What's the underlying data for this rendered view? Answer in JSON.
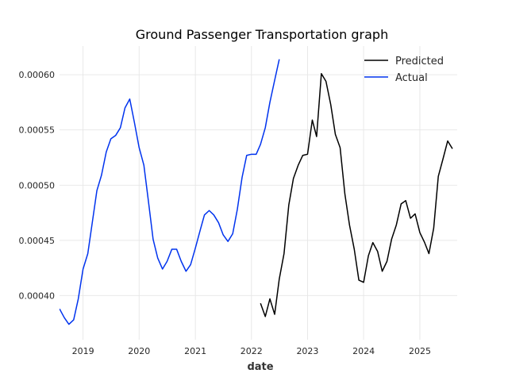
{
  "chart_data": {
    "type": "line",
    "title": "Ground Passenger Transportation graph",
    "xlabel": "date",
    "ylabel": "",
    "x_ticks": [
      "2019",
      "2020",
      "2021",
      "2022",
      "2023",
      "2024",
      "2025"
    ],
    "y_ticks": [
      "0.00040",
      "0.00045",
      "0.00050",
      "0.00055",
      "0.00060"
    ],
    "xlim": [
      "2018-08-01",
      "2025-09-01"
    ],
    "ylim": [
      0.00036,
      0.000626
    ],
    "grid": true,
    "legend_position": "top-right",
    "series": [
      {
        "name": "Predicted",
        "color": "#000000",
        "x": [
          "2022-03-01",
          "2022-04-01",
          "2022-05-01",
          "2022-06-01",
          "2022-07-01",
          "2022-08-01",
          "2022-09-01",
          "2022-10-01",
          "2022-11-01",
          "2022-12-01",
          "2023-01-01",
          "2023-02-01",
          "2023-03-01",
          "2023-04-01",
          "2023-05-01",
          "2023-06-01",
          "2023-07-01",
          "2023-08-01",
          "2023-09-01",
          "2023-10-01",
          "2023-11-01",
          "2023-12-01",
          "2024-01-01",
          "2024-02-01",
          "2024-03-01",
          "2024-04-01",
          "2024-05-01",
          "2024-06-01",
          "2024-07-01",
          "2024-08-01",
          "2024-09-01",
          "2024-10-01",
          "2024-11-01",
          "2024-12-01",
          "2025-01-01",
          "2025-02-01",
          "2025-03-01",
          "2025-04-01",
          "2025-05-01",
          "2025-06-01",
          "2025-07-01",
          "2025-08-01"
        ],
        "values": [
          0.000393,
          0.000381,
          0.000397,
          0.000383,
          0.000415,
          0.000438,
          0.000482,
          0.000506,
          0.000518,
          0.000527,
          0.000528,
          0.000559,
          0.000544,
          0.000601,
          0.000594,
          0.000573,
          0.000546,
          0.000534,
          0.000492,
          0.000464,
          0.000442,
          0.000414,
          0.000412,
          0.000436,
          0.000448,
          0.00044,
          0.000422,
          0.000431,
          0.000451,
          0.000464,
          0.000483,
          0.000486,
          0.00047,
          0.000474,
          0.000457,
          0.000448,
          0.000438,
          0.000461,
          0.000508,
          0.000524,
          0.00054,
          0.000533
        ]
      },
      {
        "name": "Actual",
        "color": "#0033ee",
        "x": [
          "2018-08-01",
          "2018-09-01",
          "2018-10-01",
          "2018-11-01",
          "2018-12-01",
          "2019-01-01",
          "2019-02-01",
          "2019-03-01",
          "2019-04-01",
          "2019-05-01",
          "2019-06-01",
          "2019-07-01",
          "2019-08-01",
          "2019-09-01",
          "2019-10-01",
          "2019-11-01",
          "2019-12-01",
          "2020-01-01",
          "2020-02-01",
          "2020-03-01",
          "2020-04-01",
          "2020-05-01",
          "2020-06-01",
          "2020-07-01",
          "2020-08-01",
          "2020-09-01",
          "2020-10-01",
          "2020-11-01",
          "2020-12-01",
          "2021-01-01",
          "2021-02-01",
          "2021-03-01",
          "2021-04-01",
          "2021-05-01",
          "2021-06-01",
          "2021-07-01",
          "2021-08-01",
          "2021-09-01",
          "2021-10-01",
          "2021-11-01",
          "2021-12-01",
          "2022-01-01",
          "2022-02-01",
          "2022-03-01",
          "2022-04-01",
          "2022-05-01",
          "2022-06-01",
          "2022-07-01"
        ],
        "values": [
          0.000388,
          0.00038,
          0.000374,
          0.000378,
          0.000397,
          0.000424,
          0.000438,
          0.000465,
          0.000495,
          0.000509,
          0.00053,
          0.000542,
          0.000545,
          0.000552,
          0.00057,
          0.000578,
          0.000557,
          0.000534,
          0.000518,
          0.000486,
          0.000451,
          0.000434,
          0.000424,
          0.000431,
          0.000442,
          0.000442,
          0.000431,
          0.000422,
          0.000428,
          0.000443,
          0.000459,
          0.000473,
          0.000477,
          0.000473,
          0.000466,
          0.000455,
          0.000449,
          0.000456,
          0.000478,
          0.000507,
          0.000527,
          0.000528,
          0.000528,
          0.000537,
          0.000552,
          0.000575,
          0.000595,
          0.000614
        ]
      }
    ]
  }
}
